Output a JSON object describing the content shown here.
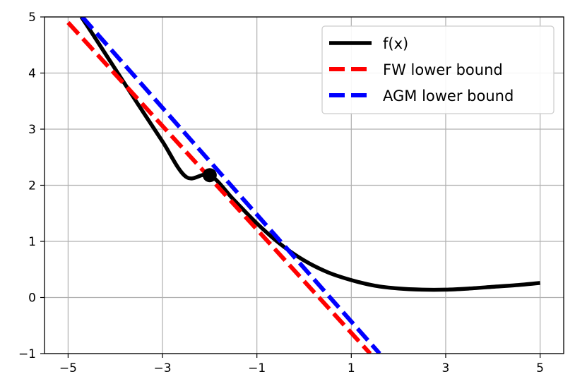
{
  "chart_data": {
    "type": "line",
    "xlim": [
      -5.5,
      5.5
    ],
    "ylim": [
      -1,
      5
    ],
    "xticks": [
      -5,
      -3,
      -1,
      1,
      3,
      5
    ],
    "yticks": [
      -1,
      0,
      1,
      2,
      3,
      4,
      5
    ],
    "xtick_labels": [
      "−5",
      "−3",
      "−1",
      "1",
      "3",
      "5"
    ],
    "ytick_labels": [
      "−1",
      "0",
      "1",
      "2",
      "3",
      "4",
      "5"
    ],
    "grid": true,
    "legend_position": "top-right",
    "series": [
      {
        "name": "f(x)",
        "style": "solid",
        "color": "#000000",
        "x": [
          -4.72,
          -4.5,
          -4.0,
          -3.5,
          -3.0,
          -2.5,
          -2.0,
          -1.5,
          -1.0,
          -0.5,
          0.0,
          0.5,
          1.0,
          1.5,
          2.0,
          2.5,
          3.0,
          3.5,
          4.0,
          4.5,
          5.0
        ],
        "y": [
          5.0,
          4.72,
          4.07,
          3.42,
          2.78,
          2.15,
          2.18,
          1.75,
          1.32,
          0.95,
          0.66,
          0.45,
          0.31,
          0.21,
          0.16,
          0.14,
          0.14,
          0.16,
          0.19,
          0.22,
          0.26
        ]
      },
      {
        "name": "FW lower bound",
        "style": "dashed",
        "color": "#ff0000",
        "x": [
          -5.0,
          1.4
        ],
        "y": [
          4.9,
          -1.0
        ]
      },
      {
        "name": "AGM lower bound",
        "style": "dashed",
        "color": "#0000ff",
        "x": [
          -4.7,
          1.6
        ],
        "y": [
          5.0,
          -1.0
        ]
      }
    ],
    "marker": {
      "x": -2.0,
      "y": 2.18,
      "color": "#000000"
    }
  }
}
